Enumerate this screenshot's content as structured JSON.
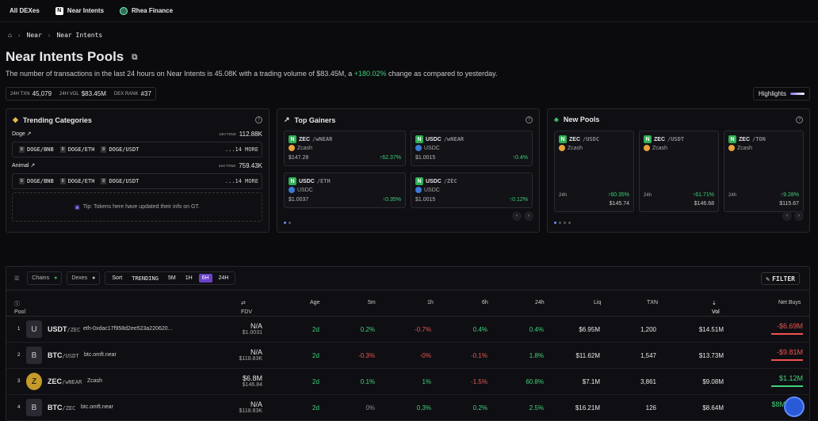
{
  "nav": {
    "all": "All DEXes",
    "near_intents": "Near Intents",
    "rhea": "Rhea Finance"
  },
  "breadcrumb": [
    "Near",
    "Near Intents"
  ],
  "title": "Near Intents Pools",
  "summary": {
    "pre": "The number of transactions in the last 24 hours on Near Intents is 45.08K with a trading volume of $83.45M, a ",
    "pct": "+180.02%",
    "post": " change as compared to yesterday."
  },
  "stats": {
    "txn_label": "24H TXN",
    "txn": "45,079",
    "vol_label": "24H VOL",
    "vol": "$83.45M",
    "rank_label": "DEX RANK",
    "rank": "#37"
  },
  "highlights": "Highlights",
  "trending": {
    "title": "Trending Categories",
    "txns_label": "24H TXNS",
    "more": "...14 MORE",
    "cats": [
      {
        "name": "Doge",
        "txns": "112.88K",
        "pairs": [
          "DOGE/BNB",
          "DOGE/ETH",
          "DOGE/USDT"
        ]
      },
      {
        "name": "Animal",
        "txns": "759.43K",
        "pairs": [
          "DOGE/BNB",
          "DOGE/ETH",
          "DOGE/USDT"
        ]
      }
    ],
    "tip": "Tip: Tokens here have updated their info on GT."
  },
  "gainers": {
    "title": "Top Gainers",
    "cards": [
      {
        "pair": "ZEC",
        "quote": "/wNEAR",
        "base": "Zcash",
        "price": "$147.28",
        "chg": "62.37%"
      },
      {
        "pair": "USDC",
        "quote": "/wNEAR",
        "base": "USDC",
        "price": "$1.0015",
        "chg": "0.4%"
      },
      {
        "pair": "USDC",
        "quote": "/ETH",
        "base": "USDC",
        "price": "$1.0037",
        "chg": "0.35%"
      },
      {
        "pair": "USDC",
        "quote": "/ZEC",
        "base": "USDC",
        "price": "$1.0015",
        "chg": "0.12%"
      }
    ]
  },
  "newpools": {
    "title": "New Pools",
    "label": "24h",
    "cards": [
      {
        "pair": "ZEC",
        "quote": "/USDC",
        "base": "Zcash",
        "chg": "60.35%",
        "price": "$145.74"
      },
      {
        "pair": "ZEC",
        "quote": "/USDT",
        "base": "Zcash",
        "chg": "61.71%",
        "price": "$146.68"
      },
      {
        "pair": "ZEC",
        "quote": "/TON",
        "base": "Zcash",
        "chg": "9.28%",
        "price": "$115.67"
      }
    ]
  },
  "filters": {
    "chains": "Chains",
    "dexes": "Dexes",
    "sort": "Sort",
    "trending": "TRENDING",
    "tf": [
      "5M",
      "1H",
      "6H",
      "24H"
    ],
    "filter": "FILTER"
  },
  "headers": {
    "pool": "Pool",
    "fdv": "FDV",
    "age": "Age",
    "m5": "5m",
    "h1": "1h",
    "h6": "6h",
    "h24": "24h",
    "liq": "Liq",
    "txn": "TXN",
    "vol": "Vol",
    "nb": "Net Buys"
  },
  "rows": [
    {
      "i": "1",
      "av": "U",
      "pair": "USDT",
      "quote": "/ZEC",
      "addr": "eth-0xdac17f958d2ee523a220620...",
      "fdv": "N/A",
      "fdv2": "$1.0031",
      "age": "2d",
      "m5": "0.2%",
      "h1": "-0.7%",
      "h6": "0.4%",
      "h24": "0.4%",
      "liq": "$6.95M",
      "txn": "1,200",
      "vol": "$14.51M",
      "nb": "-$6.69M"
    },
    {
      "i": "2",
      "av": "B",
      "pair": "BTC",
      "quote": "/USDT",
      "addr": "btc.omft.near",
      "fdv": "N/A",
      "fdv2": "$118.83K",
      "age": "2d",
      "m5": "-0.3%",
      "h1": "-0%",
      "h6": "-0.1%",
      "h24": "1.8%",
      "liq": "$11.62M",
      "txn": "1,547",
      "vol": "$13.73M",
      "nb": "-$9.81M"
    },
    {
      "i": "3",
      "av": "Z",
      "pair": "ZEC",
      "quote": "/wNEAR",
      "addr": "Zcash",
      "fdv": "$6.8M",
      "fdv2": "$146.84",
      "age": "2d",
      "m5": "0.1%",
      "h1": "1%",
      "h6": "-1.5%",
      "h24": "60.8%",
      "liq": "$7.1M",
      "txn": "3,861",
      "vol": "$9.08M",
      "nb": "$1.12M"
    },
    {
      "i": "4",
      "av": "B",
      "pair": "BTC",
      "quote": "/ZEC",
      "addr": "btc.omft.near",
      "fdv": "N/A",
      "fdv2": "$118.83K",
      "age": "2d",
      "m5": "0%",
      "h1": "0.3%",
      "h6": "0.2%",
      "h24": "2.5%",
      "liq": "$16.21M",
      "txn": "126",
      "vol": "$8.64M",
      "nb": "$8M"
    }
  ]
}
